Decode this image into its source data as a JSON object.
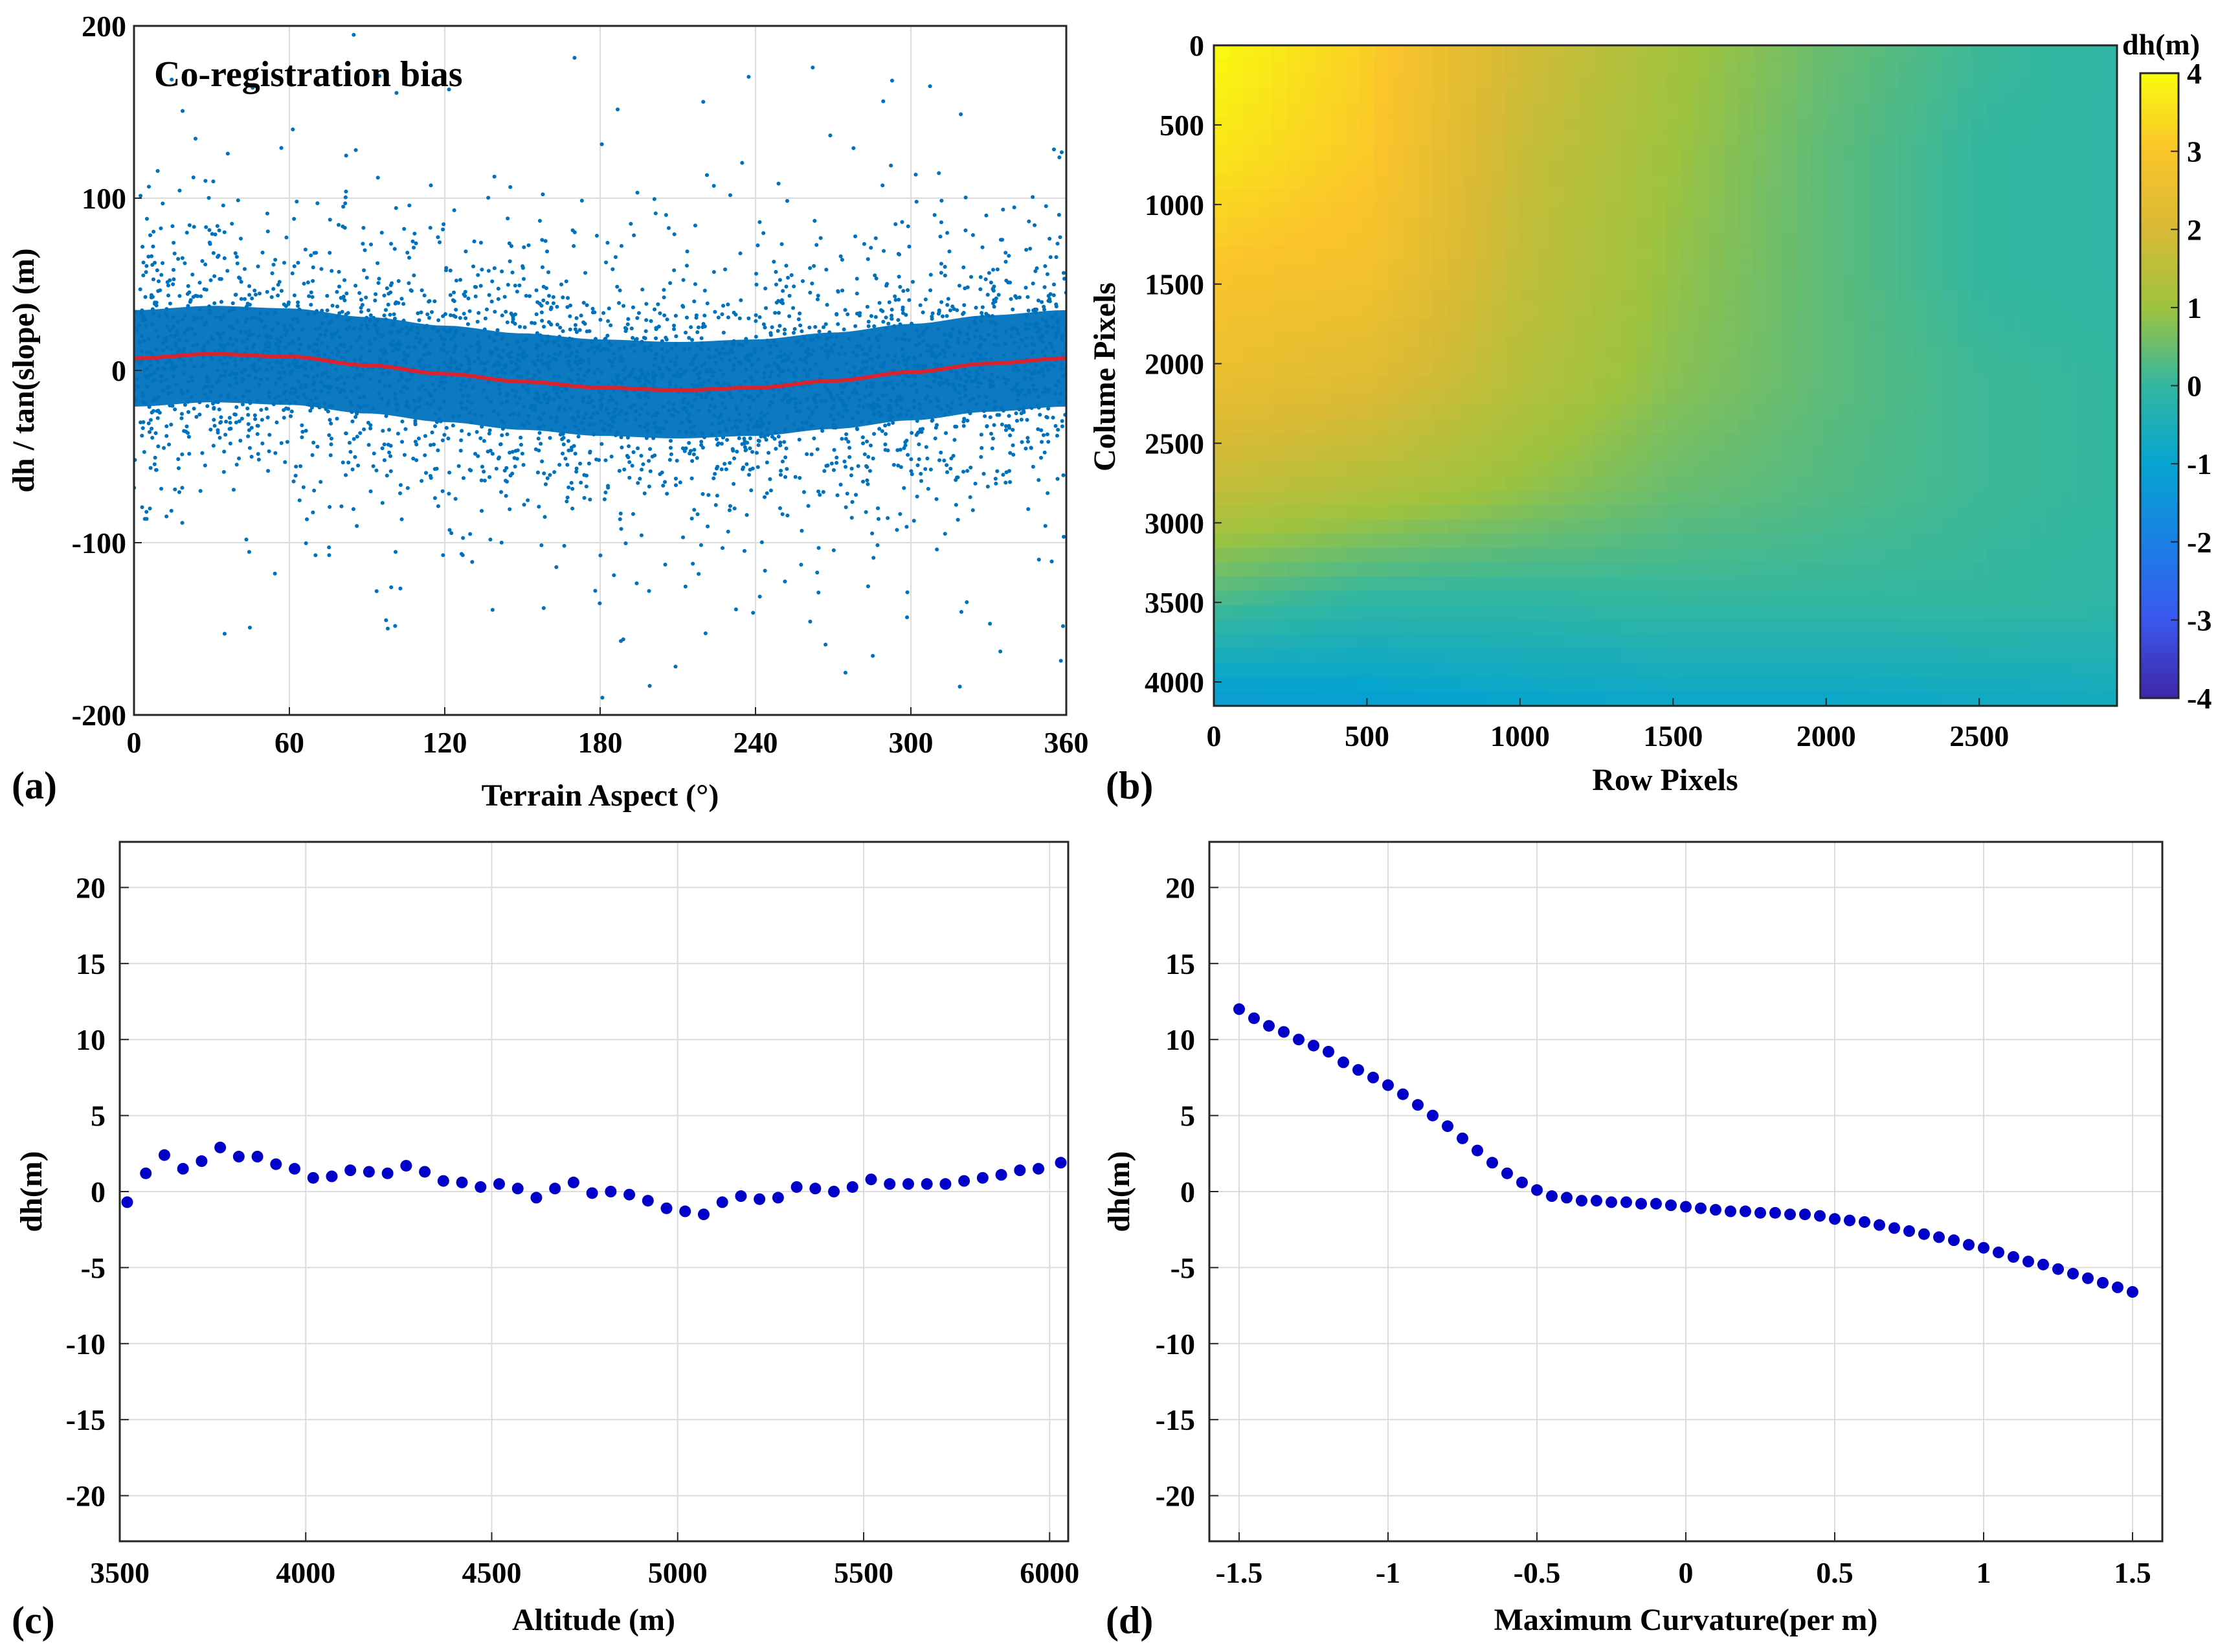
{
  "chart_data": [
    {
      "id": "a",
      "type": "scatter",
      "panel_label": "(a)",
      "annotation": "Co-registration bias",
      "xlabel": "Terrain Aspect (°)",
      "ylabel": "dh / tan(slope) (m)",
      "xlim": [
        0,
        360
      ],
      "ylim": [
        -200,
        200
      ],
      "x_ticks": [
        0,
        60,
        120,
        180,
        240,
        300,
        360
      ],
      "y_ticks": [
        -200,
        -100,
        0,
        100,
        200
      ],
      "scatter_color": "#0072BD",
      "fit_color": "#D9232F",
      "fit_curve": {
        "x": [
          0,
          30,
          60,
          90,
          120,
          150,
          180,
          210,
          240,
          270,
          300,
          330,
          360
        ],
        "y": [
          7,
          9.5,
          8,
          3,
          -2,
          -6.5,
          -10,
          -11.5,
          -10,
          -6,
          -1,
          4,
          7
        ]
      },
      "scatter_dense_band": [
        -30,
        30
      ],
      "scatter_range": [
        -200,
        200
      ]
    },
    {
      "id": "b",
      "type": "heatmap",
      "panel_label": "(b)",
      "xlabel": "Row Pixels",
      "ylabel": "Colume Pixels",
      "xlim": [
        0,
        2950
      ],
      "ylim": [
        0,
        4150
      ],
      "x_ticks": [
        0,
        500,
        1000,
        1500,
        2000,
        2500
      ],
      "y_ticks": [
        0,
        500,
        1000,
        1500,
        2000,
        2500,
        3000,
        3500,
        4000
      ],
      "colorbar_label": "dh(m)",
      "colorbar_range": [
        -4,
        4
      ],
      "colorbar_ticks": [
        4,
        3,
        2,
        1,
        0,
        -1,
        -2,
        -3,
        -4
      ],
      "grid_x": [
        0,
        500,
        1000,
        1500,
        2000,
        2500,
        2950
      ],
      "grid_y": [
        0,
        700,
        1400,
        2100,
        2800,
        3500,
        4150
      ],
      "grid_values": [
        [
          4.0,
          3.2,
          1.9,
          1.1,
          0.5,
          0.1,
          -0.1
        ],
        [
          3.6,
          3.1,
          1.7,
          1.0,
          0.4,
          0.0,
          -0.1
        ],
        [
          3.0,
          2.8,
          1.6,
          0.9,
          0.4,
          0.0,
          -0.1
        ],
        [
          2.5,
          2.2,
          1.4,
          0.8,
          0.4,
          0.1,
          0.0
        ],
        [
          1.6,
          1.3,
          0.9,
          0.5,
          0.3,
          0.1,
          0.0
        ],
        [
          0.2,
          -0.1,
          -0.1,
          0.0,
          0.0,
          0.0,
          -0.1
        ],
        [
          -1.3,
          -1.2,
          -1.0,
          -0.9,
          -0.9,
          -0.8,
          -0.7
        ]
      ]
    },
    {
      "id": "c",
      "type": "scatter",
      "panel_label": "(c)",
      "xlabel": "Altitude (m)",
      "ylabel": "dh(m)",
      "xlim": [
        3500,
        6050
      ],
      "ylim": [
        -23,
        23
      ],
      "x_ticks": [
        3500,
        4000,
        4500,
        5000,
        5500,
        6000
      ],
      "y_ticks": [
        20,
        15,
        10,
        5,
        0,
        -5,
        -10,
        -15,
        -20
      ],
      "marker_color": "#0000C8",
      "x": [
        3520,
        3570,
        3620,
        3670,
        3720,
        3770,
        3820,
        3870,
        3920,
        3970,
        4020,
        4070,
        4120,
        4170,
        4220,
        4270,
        4320,
        4370,
        4420,
        4470,
        4520,
        4570,
        4620,
        4670,
        4720,
        4770,
        4820,
        4870,
        4920,
        4970,
        5020,
        5070,
        5120,
        5170,
        5220,
        5270,
        5320,
        5370,
        5420,
        5470,
        5520,
        5570,
        5620,
        5670,
        5720,
        5770,
        5820,
        5870,
        5920,
        5970,
        6030
      ],
      "y": [
        -0.7,
        1.2,
        2.4,
        1.5,
        2.0,
        2.9,
        2.3,
        2.3,
        1.8,
        1.5,
        0.9,
        1.0,
        1.4,
        1.3,
        1.2,
        1.7,
        1.3,
        0.7,
        0.6,
        0.3,
        0.5,
        0.2,
        -0.4,
        0.2,
        0.6,
        -0.1,
        0.0,
        -0.2,
        -0.6,
        -1.1,
        -1.3,
        -1.5,
        -0.7,
        -0.3,
        -0.5,
        -0.4,
        0.3,
        0.2,
        0.0,
        0.3,
        0.8,
        0.5,
        0.5,
        0.5,
        0.5,
        0.7,
        0.9,
        1.1,
        1.4,
        1.5,
        1.9
      ]
    },
    {
      "id": "d",
      "type": "scatter",
      "panel_label": "(d)",
      "xlabel": "Maximum Curvature(per m)",
      "ylabel": "dh(m)",
      "xlim": [
        -1.6,
        1.6
      ],
      "ylim": [
        -23,
        23
      ],
      "x_ticks": [
        -1.5,
        -1,
        -0.5,
        0,
        0.5,
        1,
        1.5
      ],
      "x_tick_labels": [
        "-1.5",
        "-1",
        "-0.5",
        "0",
        "0.5",
        "1",
        "1.5"
      ],
      "y_ticks": [
        20,
        15,
        10,
        5,
        0,
        -5,
        -10,
        -15,
        -20
      ],
      "marker_color": "#0000C8",
      "x": [
        -1.5,
        -1.45,
        -1.4,
        -1.35,
        -1.3,
        -1.25,
        -1.2,
        -1.15,
        -1.1,
        -1.05,
        -1.0,
        -0.95,
        -0.9,
        -0.85,
        -0.8,
        -0.75,
        -0.7,
        -0.65,
        -0.6,
        -0.55,
        -0.5,
        -0.45,
        -0.4,
        -0.35,
        -0.3,
        -0.25,
        -0.2,
        -0.15,
        -0.1,
        -0.05,
        0.0,
        0.05,
        0.1,
        0.15,
        0.2,
        0.25,
        0.3,
        0.35,
        0.4,
        0.45,
        0.5,
        0.55,
        0.6,
        0.65,
        0.7,
        0.75,
        0.8,
        0.85,
        0.9,
        0.95,
        1.0,
        1.05,
        1.1,
        1.15,
        1.2,
        1.25,
        1.3,
        1.35,
        1.4,
        1.45,
        1.5
      ],
      "y": [
        12.0,
        11.4,
        10.9,
        10.5,
        10.0,
        9.6,
        9.2,
        8.5,
        8.0,
        7.5,
        7.0,
        6.4,
        5.7,
        5.0,
        4.3,
        3.5,
        2.7,
        1.9,
        1.2,
        0.6,
        0.1,
        -0.3,
        -0.4,
        -0.6,
        -0.6,
        -0.7,
        -0.7,
        -0.8,
        -0.8,
        -0.9,
        -1.0,
        -1.1,
        -1.2,
        -1.3,
        -1.3,
        -1.4,
        -1.4,
        -1.5,
        -1.5,
        -1.6,
        -1.8,
        -1.9,
        -2.0,
        -2.2,
        -2.4,
        -2.6,
        -2.8,
        -3.0,
        -3.2,
        -3.5,
        -3.7,
        -4.0,
        -4.3,
        -4.6,
        -4.8,
        -5.1,
        -5.4,
        -5.7,
        -6.0,
        -6.3,
        -6.6
      ]
    }
  ]
}
